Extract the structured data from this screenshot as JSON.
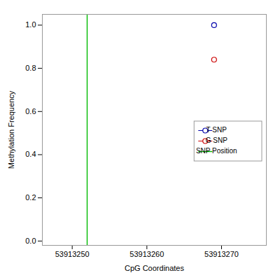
{
  "chart_data": {
    "type": "scatter",
    "xlabel": "CpG Coordinates",
    "ylabel": "Methylation Frequency",
    "series": [
      {
        "name": "T SNP",
        "type": "scatter",
        "marker": "open_circle",
        "color": "#0000AA",
        "x": [
          53913269
        ],
        "values": [
          1.0
        ]
      },
      {
        "name": "G SNP",
        "type": "scatter",
        "marker": "open_circle",
        "color": "#CC0000",
        "x": [
          53913269
        ],
        "values": [
          0.84
        ]
      },
      {
        "name": "SNP Position",
        "type": "vline",
        "color": "#00BB00",
        "x": [
          53913252
        ]
      }
    ],
    "xlim": [
      53913246,
      53913276
    ],
    "ylim": [
      -0.02,
      1.05
    ],
    "xticks": [
      53913250,
      53913260,
      53913270
    ],
    "yticks": [
      {
        "value": 0.0,
        "label": "0.0"
      },
      0.2,
      0.4,
      0.6,
      0.8,
      {
        "value": 1.0,
        "label": "1.0"
      }
    ],
    "grid": false,
    "legend": "right"
  }
}
